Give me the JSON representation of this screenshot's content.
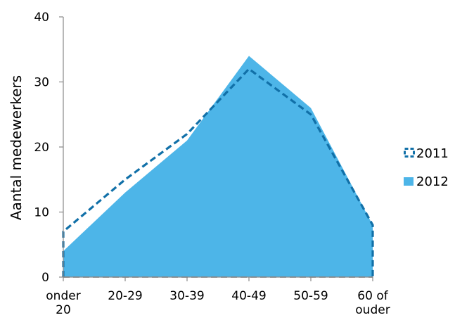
{
  "chart_data": {
    "type": "area",
    "categories": [
      "onder 20",
      "20-29",
      "30-39",
      "40-49",
      "50-59",
      "60 of ouder"
    ],
    "category_lines": [
      [
        "onder",
        "20"
      ],
      [
        "20-29"
      ],
      [
        "30-39"
      ],
      [
        "40-49"
      ],
      [
        "50-59"
      ],
      [
        "60 of",
        "ouder"
      ]
    ],
    "ylabel": "Aantal medewerkers",
    "ylim": [
      0,
      40
    ],
    "yticks": [
      0,
      10,
      20,
      30,
      40
    ],
    "grid": false,
    "legend": "right",
    "series": [
      {
        "name": "2011",
        "style": "dashed-line",
        "color": "#1170A8",
        "values": [
          7,
          15,
          22,
          32,
          25,
          8
        ]
      },
      {
        "name": "2012",
        "style": "filled-area",
        "color": "#4DB5E8",
        "values": [
          4,
          13,
          21,
          34,
          26,
          8
        ]
      }
    ]
  }
}
